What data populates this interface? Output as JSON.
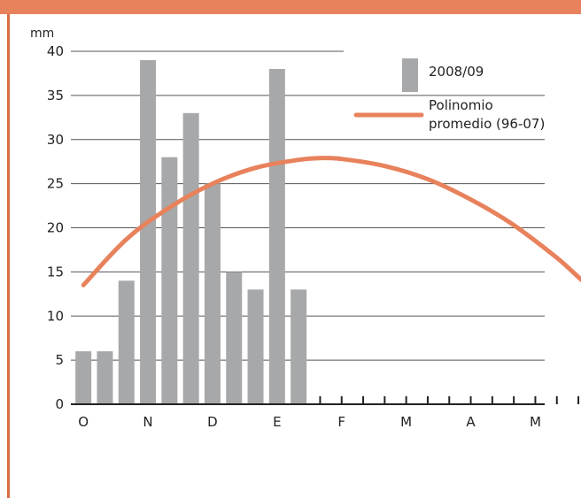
{
  "colors": {
    "accent": "#e8825c",
    "accent_dark": "#d96c43",
    "bar": "#a7a8aa",
    "gridline": "#555555",
    "axis": "#222222"
  },
  "chart_data": {
    "type": "bar",
    "unit_label": "mm",
    "ylim": [
      0,
      40
    ],
    "yticks": [
      0,
      5,
      10,
      15,
      20,
      25,
      30,
      35,
      40
    ],
    "grid": true,
    "month_labels": [
      "O",
      "N",
      "D",
      "E",
      "F",
      "M",
      "A",
      "M"
    ],
    "months_per_label": 3,
    "legend_position": "top-right",
    "series": [
      {
        "name": "2008/09",
        "type": "bar",
        "color": "#a7a8aa",
        "values": [
          6,
          6,
          14,
          39,
          28,
          33,
          25,
          15,
          13,
          38,
          13
        ]
      },
      {
        "name": "Polinomio promedio (96-07)",
        "type": "line",
        "color": "#e8825c",
        "x": [
          0,
          2,
          4,
          6,
          8,
          10,
          11,
          12,
          14,
          16,
          18,
          20,
          22,
          24,
          25.5
        ],
        "values": [
          13.5,
          18.7,
          22.3,
          25,
          26.8,
          27.7,
          27.9,
          27.8,
          27,
          25.5,
          23.2,
          20.3,
          16.6,
          12.5,
          12.2
        ]
      }
    ]
  }
}
